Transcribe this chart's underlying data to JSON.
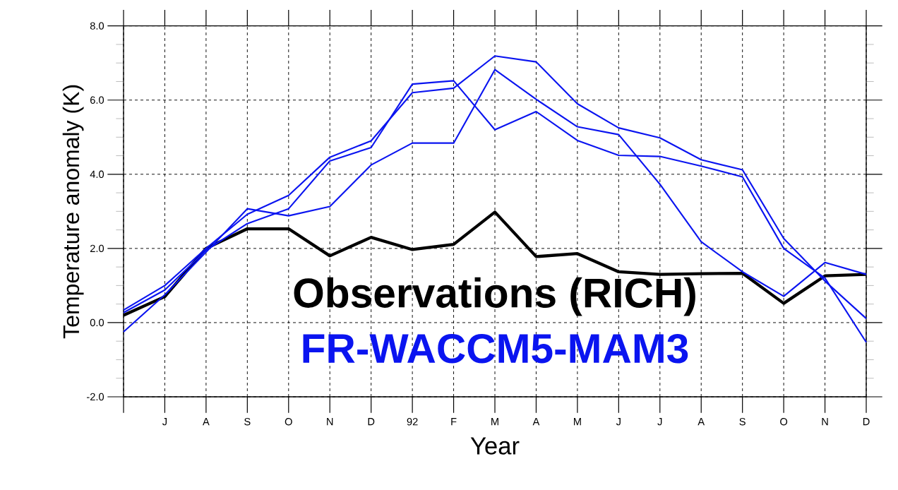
{
  "chart_data": {
    "type": "line",
    "xlabel": "Year",
    "ylabel": "Temperature anomaly (K)",
    "categories": [
      null,
      "J",
      "A",
      "S",
      "O",
      "N",
      "D",
      "92",
      "F",
      "M",
      "A",
      "M",
      "J",
      "J",
      "A",
      "S",
      "O",
      "N",
      "D"
    ],
    "series": [
      {
        "name": "Observations (RICH)",
        "color": "#000000",
        "values": [
          0.2,
          0.7,
          2.0,
          2.53,
          2.53,
          1.8,
          2.3,
          1.97,
          2.11,
          2.98,
          1.78,
          1.86,
          1.37,
          1.3,
          1.32,
          1.33,
          0.52,
          1.26,
          1.3
        ]
      },
      {
        "name": "FR-WACCM5-MAM3",
        "color": "#0a14f0",
        "values": [
          0.34,
          1.0,
          2.0,
          2.92,
          3.43,
          4.46,
          4.9,
          6.2,
          6.32,
          7.19,
          7.03,
          5.9,
          5.25,
          4.98,
          4.39,
          4.12,
          2.27,
          1.12,
          0.11
        ]
      },
      {
        "color": "#0a14f0",
        "values": [
          0.27,
          0.88,
          1.95,
          2.67,
          3.07,
          4.36,
          4.72,
          6.43,
          6.52,
          5.2,
          5.69,
          4.91,
          4.51,
          4.48,
          4.22,
          3.93,
          2.0,
          1.2,
          -0.53
        ]
      },
      {
        "color": "#0a14f0",
        "values": [
          -0.25,
          0.75,
          1.9,
          3.07,
          2.88,
          3.13,
          4.25,
          4.84,
          4.84,
          6.82,
          6.02,
          5.28,
          5.07,
          3.73,
          2.18,
          1.37,
          0.71,
          1.62,
          1.3
        ]
      }
    ],
    "ylim": [
      -2,
      8
    ],
    "yticks": [
      {
        "value": -2,
        "label": "-2.0"
      },
      {
        "value": 0,
        "label": "0.0"
      },
      {
        "value": 2,
        "label": "2.0"
      },
      {
        "value": 4,
        "label": "4.0"
      },
      {
        "value": 6,
        "label": "6.0"
      },
      {
        "value": 8,
        "label": "8.0"
      }
    ],
    "grid": true,
    "legend": "bottom",
    "marker": "none",
    "line_style": "solid"
  }
}
